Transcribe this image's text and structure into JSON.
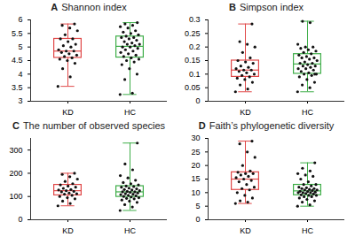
{
  "chart_data": [
    {
      "type": "box",
      "panel": "A",
      "title": "Shannon index",
      "categories": [
        "KD",
        "HC"
      ],
      "colors": [
        "#e04848",
        "#3fae49"
      ],
      "values": [
        [
          3.55,
          3.9,
          4.2,
          4.4,
          4.5,
          4.55,
          4.6,
          4.65,
          4.7,
          4.75,
          4.8,
          4.85,
          4.85,
          4.9,
          5.0,
          5.05,
          5.1,
          5.2,
          5.3,
          5.3,
          5.45,
          5.6,
          5.7,
          5.8,
          5.85
        ],
        [
          3.25,
          3.3,
          3.8,
          4.0,
          4.2,
          4.35,
          4.45,
          4.5,
          4.55,
          4.6,
          4.65,
          4.7,
          4.75,
          4.8,
          4.85,
          4.9,
          4.95,
          5.0,
          5.0,
          5.05,
          5.1,
          5.1,
          5.15,
          5.2,
          5.25,
          5.3,
          5.35,
          5.35,
          5.4,
          5.45,
          5.5,
          5.55,
          5.6,
          5.7,
          5.75,
          5.8,
          5.85,
          5.9
        ]
      ],
      "ylim": [
        3,
        6
      ],
      "yticks": [
        3,
        3.5,
        4,
        4.5,
        5,
        5.5,
        6
      ]
    },
    {
      "type": "box",
      "panel": "B",
      "title": "Simpson index",
      "categories": [
        "KD",
        "HC"
      ],
      "colors": [
        "#e04848",
        "#3fae49"
      ],
      "values": [
        [
          0.035,
          0.045,
          0.06,
          0.07,
          0.08,
          0.085,
          0.09,
          0.095,
          0.1,
          0.105,
          0.11,
          0.115,
          0.115,
          0.12,
          0.125,
          0.13,
          0.14,
          0.145,
          0.15,
          0.16,
          0.18,
          0.2,
          0.21,
          0.22,
          0.285
        ],
        [
          0.035,
          0.05,
          0.06,
          0.07,
          0.08,
          0.09,
          0.095,
          0.1,
          0.1,
          0.105,
          0.11,
          0.115,
          0.12,
          0.12,
          0.125,
          0.13,
          0.13,
          0.135,
          0.14,
          0.14,
          0.145,
          0.15,
          0.155,
          0.16,
          0.16,
          0.165,
          0.17,
          0.175,
          0.18,
          0.185,
          0.19,
          0.195,
          0.2,
          0.2,
          0.21,
          0.29,
          0.295,
          0.1
        ]
      ],
      "ylim": [
        0,
        0.3
      ],
      "yticks": [
        0,
        0.05,
        0.1,
        0.15,
        0.2,
        0.25,
        0.3
      ]
    },
    {
      "type": "box",
      "panel": "C",
      "title": "The number of observed species",
      "categories": [
        "KD",
        "HC"
      ],
      "colors": [
        "#e04848",
        "#3fae49"
      ],
      "values": [
        [
          60,
          70,
          80,
          90,
          95,
          100,
          105,
          110,
          112,
          115,
          120,
          122,
          125,
          128,
          130,
          135,
          140,
          145,
          150,
          155,
          165,
          175,
          185,
          195,
          200
        ],
        [
          40,
          55,
          65,
          75,
          80,
          85,
          90,
          92,
          95,
          98,
          100,
          103,
          105,
          108,
          110,
          112,
          115,
          118,
          120,
          120,
          122,
          125,
          128,
          130,
          133,
          136,
          140,
          143,
          145,
          150,
          155,
          160,
          170,
          180,
          190,
          215,
          240,
          330
        ]
      ],
      "ylim": [
        0,
        350
      ],
      "yticks": [
        0,
        100,
        200,
        300
      ]
    },
    {
      "type": "box",
      "panel": "D",
      "title": "Faith’s phylogenetic diversity",
      "categories": [
        "KD",
        "HC"
      ],
      "colors": [
        "#e04848",
        "#3fae49"
      ],
      "values": [
        [
          6,
          6.5,
          7,
          8,
          9,
          10,
          11,
          11.5,
          12,
          13,
          14,
          14.5,
          15,
          15.5,
          16,
          16.5,
          17,
          17,
          17.5,
          18,
          20,
          23,
          25,
          28,
          29
        ],
        [
          5,
          5.5,
          6.5,
          7,
          7.5,
          8,
          8.5,
          8.5,
          9,
          9,
          9.2,
          9.5,
          9.7,
          10,
          10,
          10,
          10.2,
          10.4,
          10.5,
          10.8,
          11,
          11,
          11.2,
          11.5,
          11.5,
          11.8,
          12,
          12.5,
          13,
          13,
          14,
          15,
          16,
          16.5,
          17,
          18,
          19,
          21
        ]
      ],
      "ylim": [
        0,
        30
      ],
      "yticks": [
        0,
        5,
        10,
        15,
        20,
        25,
        30
      ]
    }
  ]
}
